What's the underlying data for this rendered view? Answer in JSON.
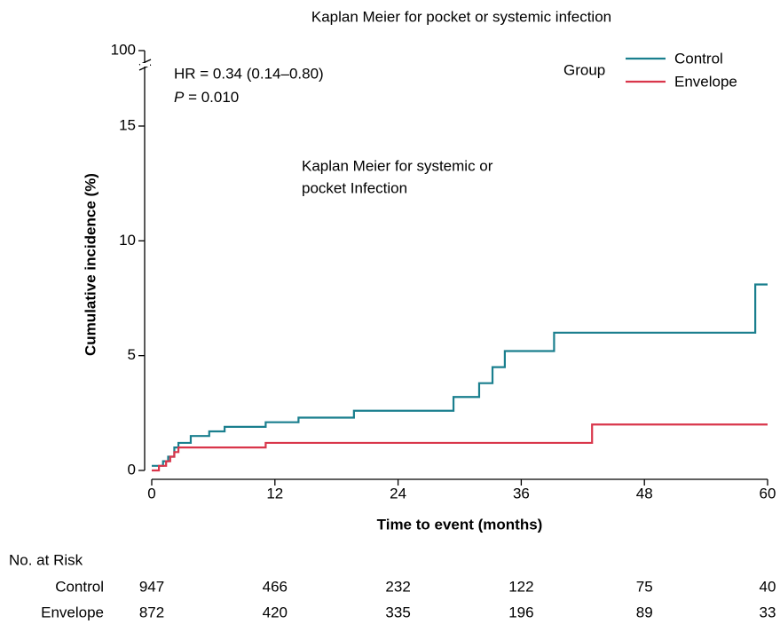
{
  "chart_data": {
    "type": "step",
    "title": "Kaplan Meier for pocket or systemic infection",
    "xlabel": "Time to event (months)",
    "ylabel": "Cumulative incidence (%)",
    "xlim": [
      0,
      60
    ],
    "xticks": [
      0,
      12,
      24,
      36,
      48,
      60
    ],
    "ylim": [
      0,
      100
    ],
    "ybreak": 18,
    "yticks": [
      0,
      5,
      10,
      15,
      100
    ],
    "legend_title": "Group",
    "legend": "upper right",
    "annotations": [
      {
        "text": "HR = 0.34 (0.14–0.80)"
      },
      {
        "italic": "P",
        "text": " = 0.010"
      },
      {
        "lines": [
          "Kaplan Meier for systemic or",
          "pocket Infection"
        ]
      }
    ],
    "risk_title": "No. at Risk",
    "series": [
      {
        "name": "Control",
        "color": "#1a7f8e",
        "x": [
          0,
          1.1,
          1.6,
          2.2,
          2.6,
          3.8,
          5.6,
          7.1,
          11.1,
          14.3,
          19.7,
          29.4,
          31.9,
          33.2,
          34.4,
          39.2,
          58.8,
          60
        ],
        "values": [
          0.2,
          0.4,
          0.6,
          1.0,
          1.2,
          1.5,
          1.7,
          1.9,
          2.1,
          2.3,
          2.6,
          3.2,
          3.8,
          4.5,
          5.2,
          6.0,
          8.1,
          8.1
        ],
        "at_risk": [
          947,
          466,
          232,
          122,
          75,
          40
        ]
      },
      {
        "name": "Envelope",
        "color": "#d9364b",
        "x": [
          0,
          0.7,
          1.4,
          1.8,
          2.2,
          2.6,
          11.1,
          42.9,
          60
        ],
        "values": [
          0,
          0.2,
          0.4,
          0.6,
          0.8,
          1.0,
          1.2,
          2.0,
          2.0
        ],
        "at_risk": [
          872,
          420,
          335,
          196,
          89,
          33
        ]
      }
    ]
  }
}
